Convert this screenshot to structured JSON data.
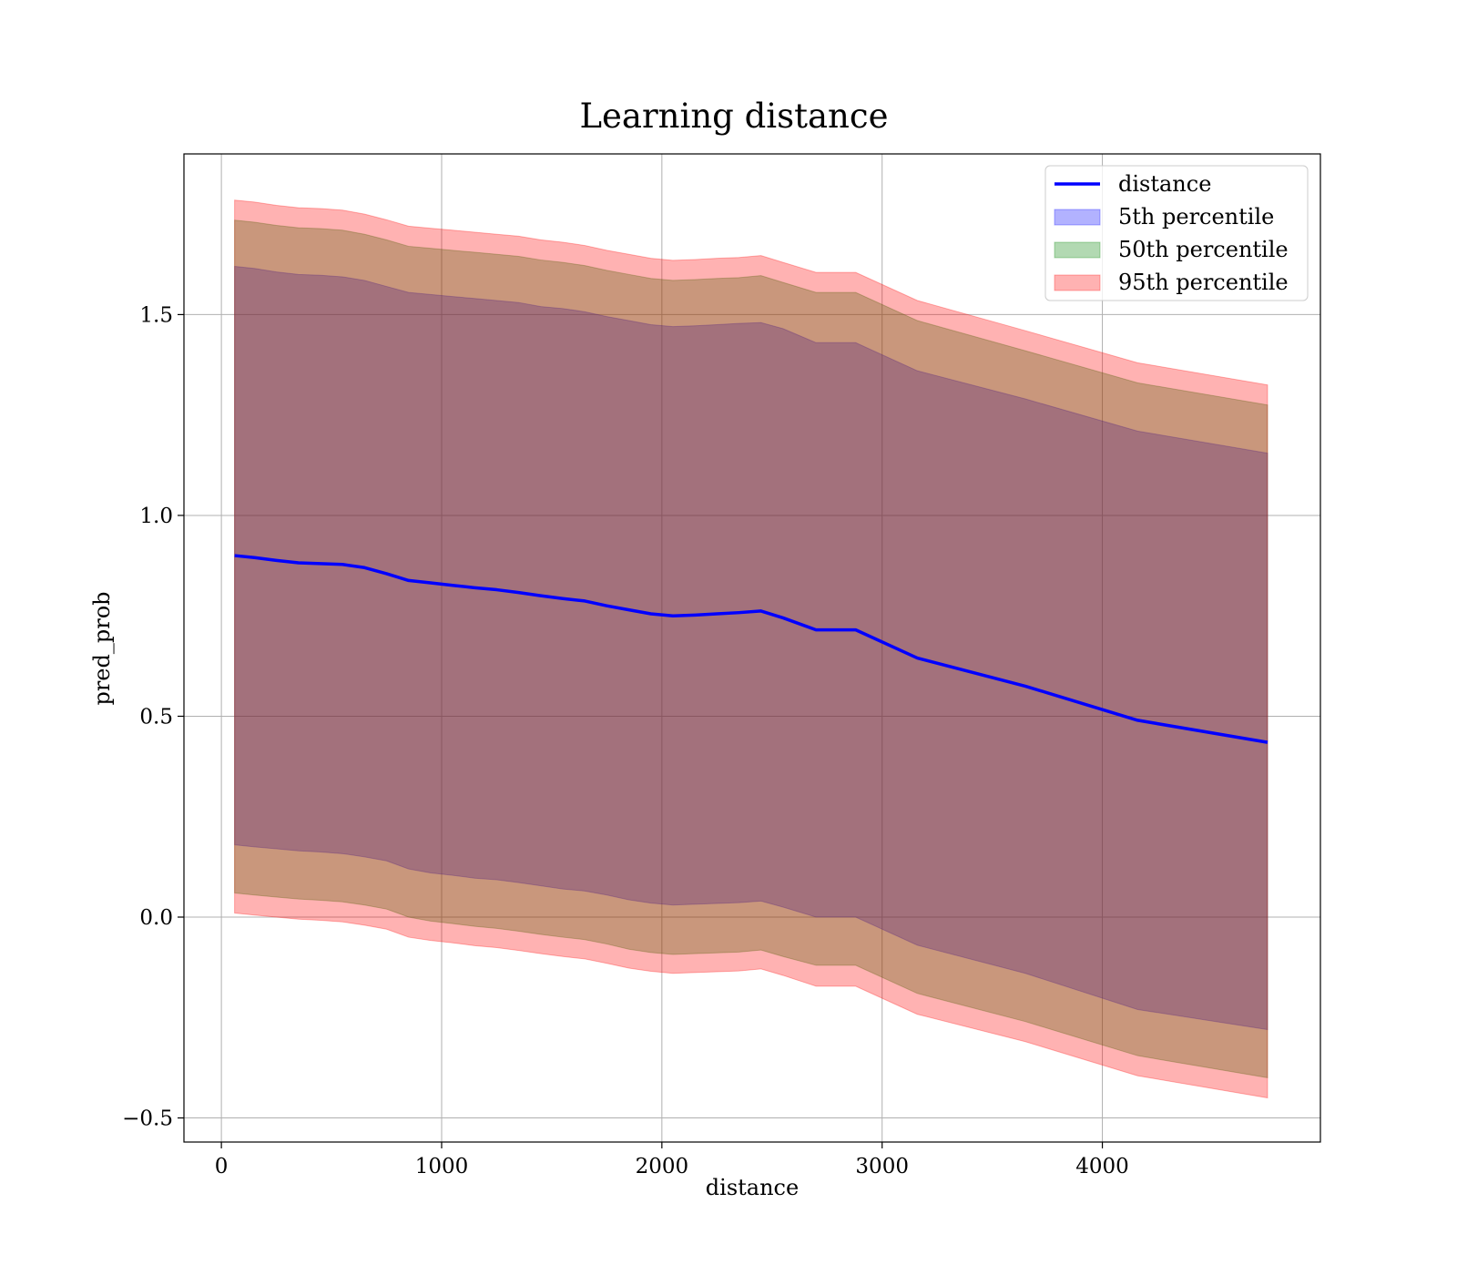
{
  "chart_data": {
    "type": "area",
    "title": "Learning distance",
    "xlabel": "distance",
    "ylabel": "pred_prob",
    "xlim": [
      -170,
      4990
    ],
    "ylim": [
      -0.56,
      1.9
    ],
    "xticks": [
      0,
      1000,
      2000,
      3000,
      4000
    ],
    "yticks": [
      -0.5,
      0.0,
      0.5,
      1.0,
      1.5
    ],
    "xtick_labels": [
      "0",
      "1000",
      "2000",
      "3000",
      "4000"
    ],
    "ytick_labels": [
      "−0.5",
      "0.0",
      "0.5",
      "1.0",
      "1.5"
    ],
    "grid": true,
    "legend_position": "top-right",
    "x": [
      60,
      150,
      250,
      350,
      450,
      550,
      650,
      750,
      850,
      950,
      1050,
      1150,
      1250,
      1350,
      1450,
      1550,
      1650,
      1750,
      1850,
      1950,
      2050,
      2150,
      2250,
      2350,
      2450,
      2550,
      2700,
      2880,
      3160,
      3650,
      4160,
      4750
    ],
    "series": [
      {
        "name": "distance",
        "kind": "line",
        "color": "#0000ff",
        "values": [
          0.9,
          0.895,
          0.888,
          0.882,
          0.88,
          0.878,
          0.87,
          0.855,
          0.838,
          0.832,
          0.826,
          0.82,
          0.815,
          0.808,
          0.8,
          0.793,
          0.787,
          0.775,
          0.765,
          0.755,
          0.75,
          0.752,
          0.755,
          0.758,
          0.762,
          0.745,
          0.715,
          0.715,
          0.645,
          0.575,
          0.49,
          0.435
        ]
      },
      {
        "name": "5th percentile",
        "kind": "band",
        "color": "#0000ff",
        "lower": [
          0.18,
          0.175,
          0.17,
          0.165,
          0.162,
          0.158,
          0.15,
          0.14,
          0.12,
          0.11,
          0.104,
          0.097,
          0.093,
          0.086,
          0.078,
          0.07,
          0.065,
          0.055,
          0.043,
          0.035,
          0.03,
          0.032,
          0.034,
          0.036,
          0.04,
          0.025,
          0.0,
          0.0,
          -0.07,
          -0.14,
          -0.23,
          -0.28
        ],
        "upper": [
          1.62,
          1.615,
          1.606,
          1.6,
          1.598,
          1.594,
          1.585,
          1.57,
          1.555,
          1.55,
          1.545,
          1.54,
          1.535,
          1.53,
          1.52,
          1.515,
          1.507,
          1.495,
          1.485,
          1.475,
          1.47,
          1.472,
          1.475,
          1.478,
          1.48,
          1.465,
          1.43,
          1.43,
          1.36,
          1.29,
          1.21,
          1.155
        ]
      },
      {
        "name": "50th percentile",
        "kind": "band",
        "color": "#008000",
        "lower": [
          0.06,
          0.055,
          0.05,
          0.045,
          0.042,
          0.038,
          0.03,
          0.02,
          0.0,
          -0.01,
          -0.016,
          -0.023,
          -0.028,
          -0.035,
          -0.043,
          -0.05,
          -0.056,
          -0.067,
          -0.08,
          -0.088,
          -0.093,
          -0.091,
          -0.089,
          -0.087,
          -0.082,
          -0.098,
          -0.12,
          -0.12,
          -0.19,
          -0.26,
          -0.345,
          -0.4
        ],
        "upper": [
          1.735,
          1.73,
          1.722,
          1.716,
          1.714,
          1.71,
          1.7,
          1.686,
          1.67,
          1.665,
          1.66,
          1.655,
          1.65,
          1.645,
          1.636,
          1.63,
          1.622,
          1.61,
          1.6,
          1.59,
          1.585,
          1.587,
          1.59,
          1.592,
          1.597,
          1.58,
          1.555,
          1.555,
          1.485,
          1.41,
          1.33,
          1.275
        ]
      },
      {
        "name": "95th percentile",
        "kind": "band",
        "color": "#ff0000",
        "lower": [
          0.01,
          0.005,
          0.0,
          -0.005,
          -0.008,
          -0.012,
          -0.02,
          -0.03,
          -0.05,
          -0.058,
          -0.064,
          -0.071,
          -0.076,
          -0.083,
          -0.091,
          -0.098,
          -0.104,
          -0.115,
          -0.127,
          -0.135,
          -0.14,
          -0.138,
          -0.136,
          -0.134,
          -0.129,
          -0.145,
          -0.172,
          -0.172,
          -0.242,
          -0.31,
          -0.395,
          -0.45
        ],
        "upper": [
          1.785,
          1.78,
          1.772,
          1.766,
          1.764,
          1.76,
          1.75,
          1.736,
          1.72,
          1.715,
          1.71,
          1.705,
          1.7,
          1.695,
          1.686,
          1.68,
          1.672,
          1.66,
          1.65,
          1.64,
          1.635,
          1.637,
          1.64,
          1.642,
          1.647,
          1.63,
          1.605,
          1.605,
          1.535,
          1.46,
          1.38,
          1.325
        ]
      }
    ]
  }
}
